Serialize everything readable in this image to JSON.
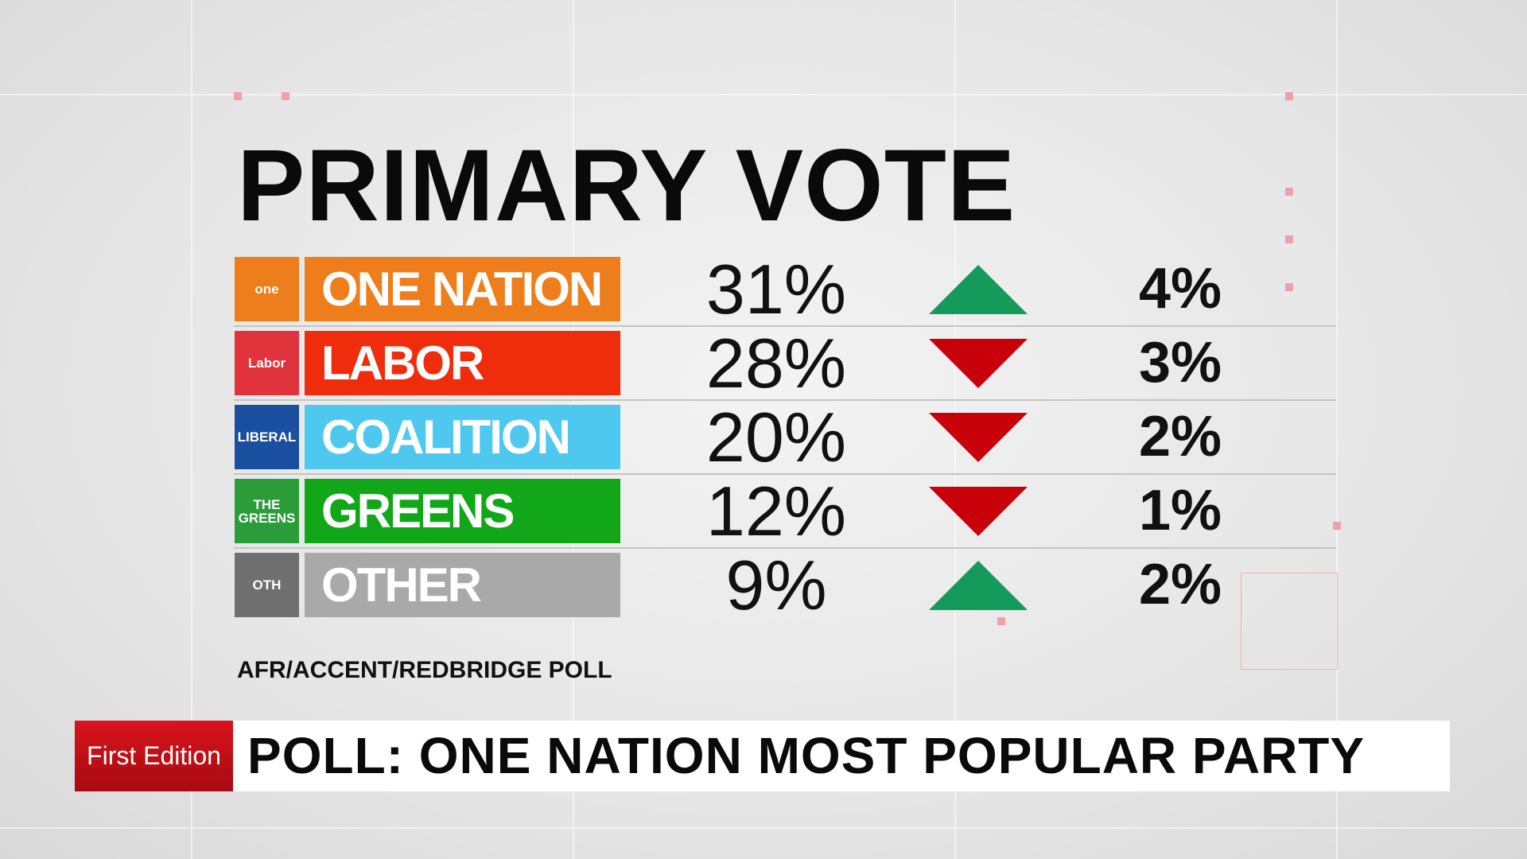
{
  "title": "PRIMARY VOTE",
  "table": {
    "rows": [
      {
        "logo": "one",
        "party": "ONE NATION",
        "vote": "31%",
        "direction": "up",
        "change": "4%",
        "color": "#ee7d1b",
        "logo_color": "#ee7d1b"
      },
      {
        "logo": "Labor",
        "party": "LABOR",
        "vote": "28%",
        "direction": "down",
        "change": "3%",
        "color": "#ef2d0c",
        "logo_color": "#e0333b"
      },
      {
        "logo": "LIBERAL",
        "party": "COALITION",
        "vote": "20%",
        "direction": "down",
        "change": "2%",
        "color": "#4fc8f0",
        "logo_color": "#1a4fa0"
      },
      {
        "logo": "THE GREENS",
        "party": "GREENS",
        "vote": "12%",
        "direction": "down",
        "change": "1%",
        "color": "#12a619",
        "logo_color": "#2a9d3a"
      },
      {
        "logo": "OTH",
        "party": "OTHER",
        "vote": "9%",
        "direction": "up",
        "change": "2%",
        "color": "#a9a9a9",
        "logo_color": "#6f6f6f"
      }
    ]
  },
  "arrow_colors": {
    "up": "#149a5a",
    "down": "#c8000a"
  },
  "source": "AFR/ACCENT/REDBRIDGE POLL",
  "ticker": {
    "program": "First Edition",
    "headline": "POLL: ONE NATION MOST POPULAR PARTY"
  }
}
